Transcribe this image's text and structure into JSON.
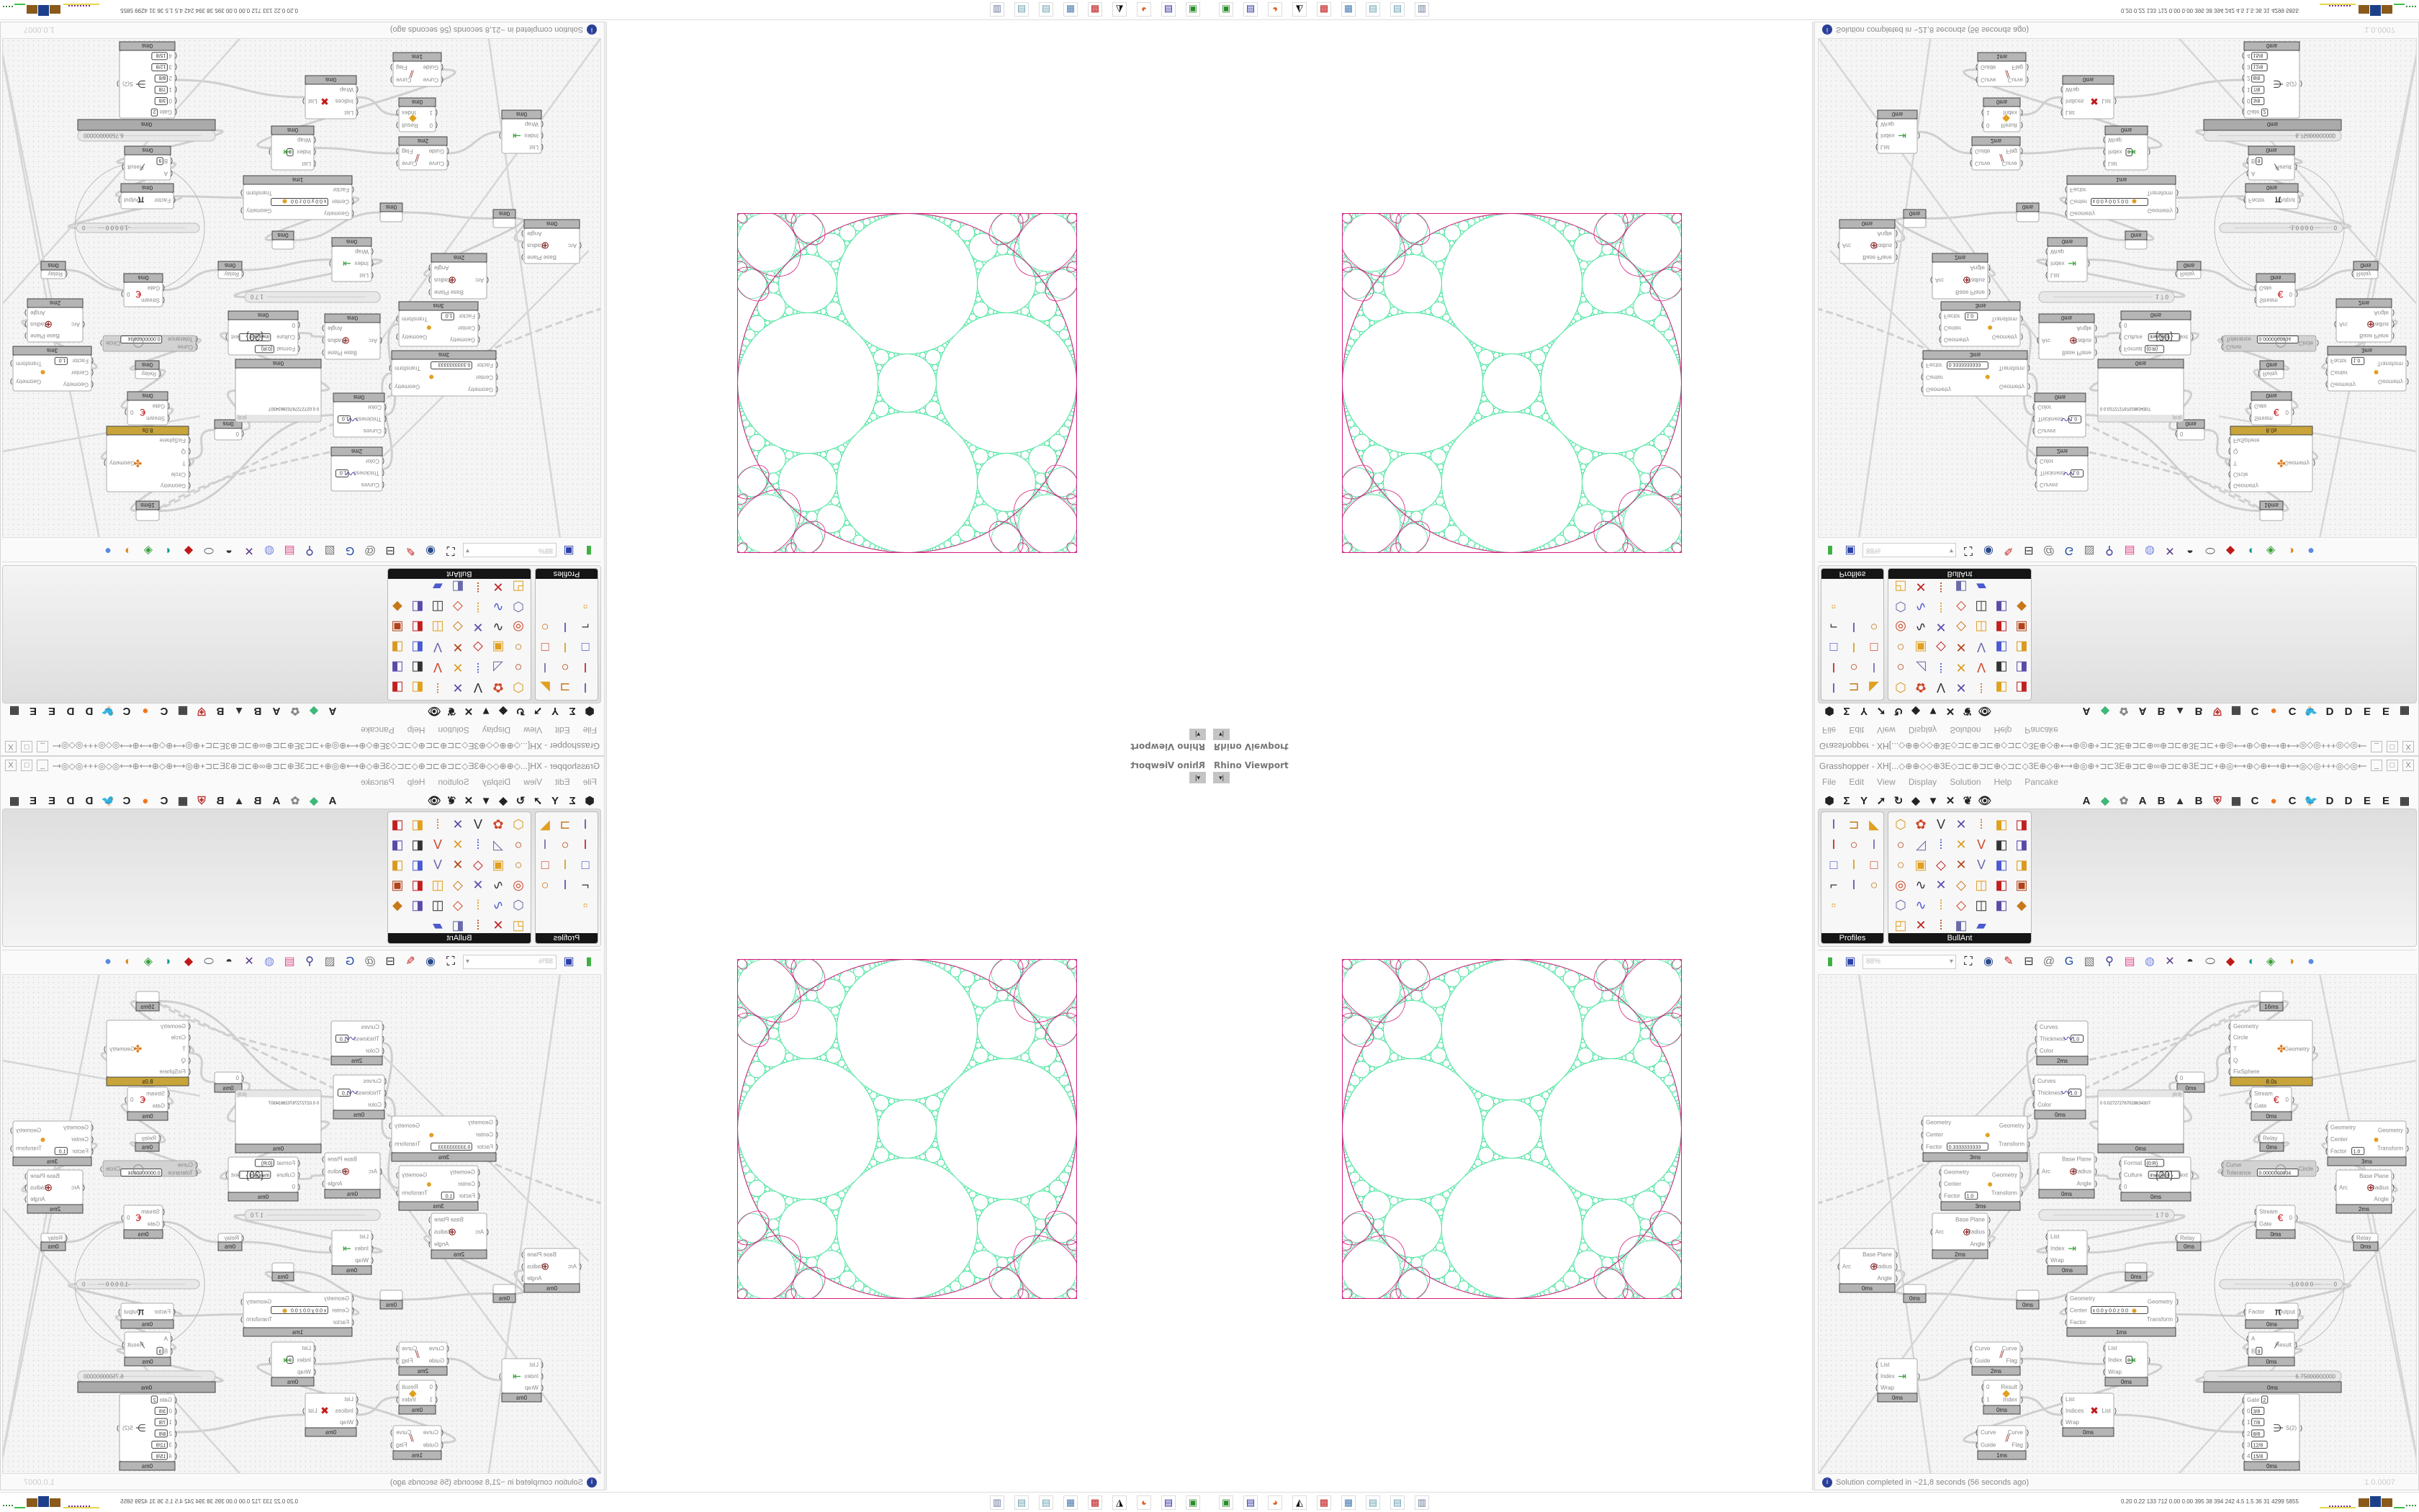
{
  "viewport": {
    "label": "Rhino Viewport",
    "dropdown_icon": "▾|"
  },
  "gh": {
    "title": "Grasshopper - XH[...◇⊕⊕◇◇⊕3E◇⊐⊏⊕⊐⊏⊕◇⊐⊏◇3E⊕◇⊕⟷⊕◎⊕+⊐⊏3E⊕⊐⊏⊕∞⊕⊐⊏⊕3E⊐⊏+⊕◎⟷⊕◇⊕⟷⊕⟷◎◇◎+++◎◇◎⟷⊕⟷⊕◇⊕⟷◎⊕+⊐⊏3E⊕⊐⊏⊕∞⊕...",
    "window_buttons": [
      "_",
      "□",
      "X"
    ],
    "menu": [
      "File",
      "Edit",
      "View",
      "Display",
      "Solution",
      "Help",
      "Pancake"
    ],
    "category_icons_left": [
      "⬢",
      "Σ",
      "Y",
      "➚",
      "↻",
      "◆",
      "▼",
      "✕",
      "❦",
      "👁"
    ],
    "category_icons_right": [
      "A",
      "◆",
      "✿",
      "A",
      "B",
      "▲",
      "B",
      "⛨",
      "▦",
      "C",
      "●",
      "C",
      "🐦",
      "D",
      "D",
      "E",
      "E",
      "▦"
    ],
    "panels": [
      {
        "label": "Profiles",
        "icons": [
          "I",
          "⊐",
          "◣",
          "I",
          "○",
          "I",
          "□",
          "I",
          "□",
          "⌐",
          "I",
          "○",
          "▫"
        ]
      },
      {
        "label": "BullAnt",
        "icons": [
          "⬡",
          "✿",
          "V",
          "✕",
          "⁞",
          "◧",
          "◨",
          "○",
          "◿",
          "⁞",
          "✕",
          "V",
          "◧",
          "◨",
          "○",
          "▣",
          "◇",
          "✕",
          "V",
          "◧",
          "◨",
          "◎",
          "∿",
          "✕",
          "◇",
          "◫",
          "◧",
          "▣",
          "⬡",
          "∿",
          "⁞",
          "◇",
          "◫",
          "◧",
          "◆",
          "◰",
          "✕",
          "⁞",
          "◧",
          "▰"
        ]
      }
    ],
    "canvas_toolbar": {
      "zoom": "88%",
      "icons": [
        "new-doc",
        "save",
        "zoom-extents",
        "preview-eye",
        "sketch-brush",
        "bake",
        "email",
        "gha",
        "image",
        "search",
        "package",
        "bulb",
        "wires",
        "ghost",
        "cap",
        "gem",
        "teal-shape",
        "green-shape",
        "half-sphere",
        "sphere"
      ]
    },
    "nodes": [
      {
        "inputs": [],
        "outputs": [],
        "time": "16ms"
      },
      {
        "inputs": [
          {
            "label": "Curves"
          },
          {
            "label": "Thickness",
            "value": "1.0"
          },
          {
            "label": "Color"
          }
        ],
        "outputs": [],
        "time": "2ms",
        "icon": "〰"
      },
      {
        "inputs": [
          {
            "label": "Curves"
          },
          {
            "label": "Thickness",
            "value": "1.0"
          },
          {
            "label": "Color"
          }
        ],
        "outputs": [],
        "time": "0ms",
        "icon": "〰"
      },
      {
        "inputs": [
          {
            "label": "Geometry"
          },
          {
            "label": "Circle"
          },
          {
            "label": "T"
          },
          {
            "label": "Q"
          },
          {
            "label": "FixSphere"
          }
        ],
        "outputs": [
          {
            "label": "Geometry"
          }
        ],
        "time": "8.0s",
        "icon": "✤"
      },
      {
        "inputs": [
          {
            "label": "0"
          }
        ],
        "outputs": [],
        "time": "0ms"
      },
      {
        "header": "{0;0}",
        "text": "0  0.027272767028634307",
        "inputs": [],
        "outputs": [],
        "time": "0ms"
      },
      {
        "inputs": [
          {
            "label": "Stream"
          },
          {
            "label": "Gate"
          }
        ],
        "outputs": [
          {
            "label": "0"
          }
        ],
        "time": "0ms",
        "icon": "€"
      },
      {
        "inputs": [
          {
            "label": "Relay"
          }
        ],
        "outputs": [],
        "time": "0ms"
      },
      {
        "inputs": [
          {
            "label": "Geometry"
          },
          {
            "label": "Center"
          },
          {
            "label": "Factor",
            "value": "0.3333333333"
          }
        ],
        "outputs": [
          {
            "label": "Geometry"
          },
          {
            "label": "Transform"
          }
        ],
        "time": "3ms",
        "icon": "●"
      },
      {
        "inputs": [
          {
            "label": "Geometry"
          },
          {
            "label": "Center"
          },
          {
            "label": "Factor",
            "value": "1.0"
          }
        ],
        "outputs": [
          {
            "label": "Geometry"
          },
          {
            "label": "Transform"
          }
        ],
        "time": "3ms",
        "icon": "●"
      },
      {
        "inputs": [
          {
            "label": "Geometry"
          },
          {
            "label": "Center"
          },
          {
            "label": "Factor",
            "value": "1.0"
          }
        ],
        "outputs": [
          {
            "label": "Geometry"
          },
          {
            "label": "Transform"
          }
        ],
        "time": "3ms",
        "icon": "●"
      },
      {
        "inputs": [
          {
            "label": "Arc"
          }
        ],
        "outputs": [
          {
            "label": "Base Plane"
          },
          {
            "label": "Radius"
          },
          {
            "label": "Angle"
          }
        ],
        "time": "0ms",
        "icon": "⊕"
      },
      {
        "inputs": [
          {
            "label": "Format",
            "value": "{0:R}"
          },
          {
            "label": "Culture",
            "value": "invariant"
          },
          {
            "label": "0"
          }
        ],
        "outputs": [
          {
            "label": "Text"
          }
        ],
        "time": "0ms",
        "icon": "{20}"
      },
      {
        "inputs": [
          {
            "label": "Curve"
          },
          {
            "label": "Tolerance",
            "value": "0.0000000004"
          }
        ],
        "outputs": [
          {
            "label": "Circle"
          }
        ],
        "time": "",
        "icon": "◯",
        "disabled": true
      },
      {
        "inputs": [
          {
            "label": "Arc"
          }
        ],
        "outputs": [
          {
            "label": "Base Plane"
          },
          {
            "label": "Radius"
          },
          {
            "label": "Angle"
          }
        ],
        "time": "2ms",
        "icon": "⊕"
      },
      {
        "inputs": [
          {
            "label": "Arc"
          }
        ],
        "outputs": [
          {
            "label": "Base Plane"
          },
          {
            "label": "Radius"
          },
          {
            "label": "Angle"
          }
        ],
        "time": "2ms",
        "icon": "⊕"
      },
      {
        "inputs": [
          {
            "label": "Arc"
          }
        ],
        "outputs": [
          {
            "label": "Base Plane"
          },
          {
            "label": "Radius"
          },
          {
            "label": "Angle"
          }
        ],
        "time": "0ms",
        "icon": "⊕"
      },
      {
        "slider": "1 7 0"
      },
      {
        "inputs": [
          {
            "label": "List"
          },
          {
            "label": "Index"
          },
          {
            "label": "Wrap"
          }
        ],
        "outputs": [
          {
            "label": ""
          }
        ],
        "time": "0ms",
        "icon": "⇥"
      },
      {
        "inputs": [
          {
            "label": "Relay"
          }
        ],
        "outputs": [],
        "time": "0ms"
      },
      {
        "inputs": [
          {
            "label": "Stream"
          },
          {
            "label": "Gate"
          }
        ],
        "outputs": [
          {
            "label": "0"
          }
        ],
        "time": "0ms",
        "icon": "€"
      },
      {
        "inputs": [
          {
            "label": "Relay"
          }
        ],
        "outputs": [],
        "time": "0ms"
      },
      {
        "inputs": [],
        "outputs": [],
        "time": "0ms"
      },
      {
        "inputs": [],
        "outputs": [],
        "time": "0ms"
      },
      {
        "inputs": [],
        "outputs": [],
        "time": "0ms"
      },
      {
        "inputs": [
          {
            "label": "Geometry"
          },
          {
            "label": "Center",
            "value": "x 0.0 y 0.0 z 0.0"
          },
          {
            "label": "Factor"
          }
        ],
        "outputs": [
          {
            "label": "Geometry"
          },
          {
            "label": "Transform"
          }
        ],
        "time": "1ms",
        "icon": "●"
      },
      {
        "slider": "-1.0  0.0  0   ·········  0"
      },
      {
        "inputs": [
          {
            "label": "Factor"
          }
        ],
        "outputs": [
          {
            "label": "Output"
          }
        ],
        "time": "0ms",
        "icon": "π"
      },
      {
        "inputs": [
          {
            "label": "A"
          },
          {
            "label": "B",
            "value": "9"
          }
        ],
        "outputs": [
          {
            "label": "Result"
          }
        ],
        "time": "0ms",
        "icon": "⁄"
      },
      {
        "slider": "6.75000000000",
        "time": "0ms"
      },
      {
        "inputs": [
          {
            "label": "Curve"
          },
          {
            "label": "Guide"
          }
        ],
        "outputs": [
          {
            "label": "Curve"
          },
          {
            "label": "Flag"
          }
        ],
        "time": "2ms",
        "icon": "⫽"
      },
      {
        "inputs": [
          {
            "label": "List"
          },
          {
            "label": "Index",
            "value": "8"
          },
          {
            "label": "Wrap"
          }
        ],
        "outputs": [
          {
            "label": ""
          }
        ],
        "time": "0ms",
        "icon": "⇥"
      },
      {
        "inputs": [
          {
            "label": "List"
          },
          {
            "label": "Index"
          },
          {
            "label": "Wrap"
          }
        ],
        "outputs": [
          {
            "label": ""
          }
        ],
        "time": "0ms",
        "icon": "⇥"
      },
      {
        "inputs": [
          {
            "label": "0"
          },
          {
            "label": "1"
          }
        ],
        "outputs": [
          {
            "label": "Result"
          },
          {
            "label": "Index"
          }
        ],
        "time": "0ms",
        "icon": "◆"
      },
      {
        "inputs": [
          {
            "label": "List"
          },
          {
            "label": "Indices"
          },
          {
            "label": "Wrap"
          }
        ],
        "outputs": [
          {
            "label": "List"
          }
        ],
        "time": "0ms",
        "icon": "✖"
      },
      {
        "inputs": [
          {
            "label": "Gate",
            "value": "2"
          },
          {
            "label": "0",
            "value": "3/8"
          },
          {
            "label": "1",
            "value": "7/8"
          },
          {
            "label": "2",
            "value": "8/8"
          },
          {
            "label": "3",
            "value": "12/8"
          },
          {
            "label": "4",
            "value": "15/8"
          }
        ],
        "outputs": [
          {
            "label": "S(2)"
          }
        ],
        "time": "0ms",
        "icon": "⋺"
      },
      {
        "inputs": [
          {
            "label": "Curve"
          },
          {
            "label": "Guide"
          }
        ],
        "outputs": [
          {
            "label": "Curve"
          },
          {
            "label": "Flag"
          }
        ],
        "time": "1ms",
        "icon": "⫽"
      }
    ],
    "status": {
      "text": "Solution completed in ~21,8 seconds (56 seconds ago)",
      "version": "1.0.0007"
    }
  },
  "taskbar": {
    "apps": [
      "rhino-console",
      "save-64",
      "firefox",
      "inkscape",
      "red-app",
      "calculator",
      "notepad",
      "notepad-2",
      "printer"
    ],
    "perf": "0.20 0.22  133  712  0.00  0.00  395  38  394  242  4.5  1.5  36  31  4299 5855"
  },
  "colors": {
    "packing_green": "#45e39c",
    "packing_magenta": "#d61c7e",
    "solver_gold": "#c8a43a",
    "accent_blue": "#2a3f9a"
  }
}
